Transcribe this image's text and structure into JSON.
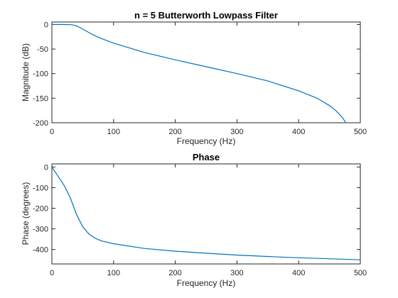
{
  "chart_data": [
    {
      "type": "line",
      "title": "n = 5 Butterworth Lowpass Filter",
      "xlabel": "Frequency (Hz)",
      "ylabel": "Magnitude (dB)",
      "xlim": [
        0,
        500
      ],
      "ylim": [
        -200,
        5
      ],
      "xticks": [
        0,
        100,
        200,
        300,
        400,
        500
      ],
      "yticks": [
        0,
        -50,
        -100,
        -150,
        -200
      ],
      "xtick_labels": [
        "0",
        "100",
        "200",
        "300",
        "400",
        "500"
      ],
      "ytick_labels": [
        "0",
        "-50",
        "-100",
        "-150",
        "-200"
      ],
      "grid": true,
      "color": "#0072bd",
      "series": [
        {
          "x": [
            0,
            10,
            20,
            30,
            35,
            40,
            45,
            50,
            60,
            70,
            80,
            100,
            150,
            200,
            250,
            300,
            350,
            400,
            430,
            450,
            460,
            470,
            475,
            478
          ],
          "y": [
            0,
            0,
            0,
            -0.3,
            -1.2,
            -3.0,
            -6.0,
            -9.5,
            -16.5,
            -23,
            -28.5,
            -38,
            -57,
            -72,
            -86,
            -100,
            -115,
            -135,
            -150,
            -165,
            -175,
            -188,
            -197,
            -205
          ]
        }
      ]
    },
    {
      "type": "line",
      "title": "Phase",
      "xlabel": "Frequency (Hz)",
      "ylabel": "Phase (degrees)",
      "xlim": [
        0,
        500
      ],
      "ylim": [
        -470,
        15
      ],
      "xticks": [
        0,
        100,
        200,
        300,
        400,
        500
      ],
      "yticks": [
        0,
        -100,
        -200,
        -300,
        -400
      ],
      "xtick_labels": [
        "0",
        "100",
        "200",
        "300",
        "400",
        "500"
      ],
      "ytick_labels": [
        "0",
        "-100",
        "-200",
        "-300",
        "-400"
      ],
      "grid": true,
      "color": "#0072bd",
      "series": [
        {
          "x": [
            0,
            10,
            20,
            30,
            40,
            50,
            60,
            70,
            80,
            100,
            150,
            200,
            250,
            300,
            350,
            400,
            450,
            500
          ],
          "y": [
            0,
            -45,
            -90,
            -150,
            -230,
            -290,
            -325,
            -345,
            -358,
            -372,
            -395,
            -408,
            -418,
            -427,
            -434,
            -440,
            -445,
            -450
          ]
        }
      ]
    }
  ]
}
